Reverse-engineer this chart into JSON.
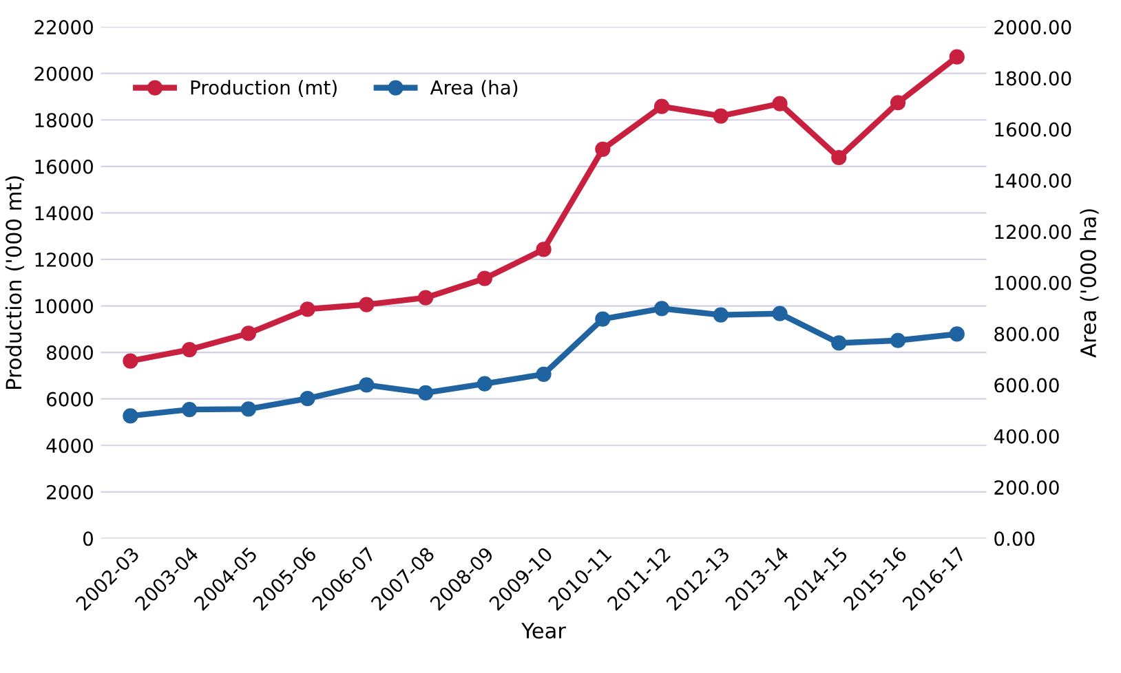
{
  "chart_data": {
    "type": "line",
    "xlabel": "Year",
    "ylabel": "Production ('000 mt)",
    "y2label": "Area ('000 ha)",
    "categories": [
      "2002-03",
      "2003-04",
      "2004-05",
      "2005-06",
      "2006-07",
      "2007-08",
      "2008-09",
      "2009-10",
      "2010-11",
      "2011-12",
      "2012-13",
      "2013-14",
      "2014-15",
      "2015-16",
      "2016-17"
    ],
    "series": [
      {
        "name": "Production (mt)",
        "color": "#c8203f",
        "values": [
          7630,
          8120,
          8820,
          9860,
          10060,
          10350,
          11180,
          12430,
          16740,
          18580,
          18170,
          18700,
          16380,
          18740,
          20710
        ]
      },
      {
        "name": "Area (ha)",
        "color": "#1f64a0",
        "axis": "y2",
        "values": [
          479,
          504,
          506,
          547,
          600,
          569,
          605,
          642,
          858,
          899,
          874,
          879,
          764,
          774,
          799
        ]
      }
    ],
    "ylim": [
      0,
      22000
    ],
    "yticks": [
      0,
      2000,
      4000,
      6000,
      8000,
      10000,
      12000,
      14000,
      16000,
      18000,
      20000,
      22000
    ],
    "y2lim": [
      0,
      2000
    ],
    "y2ticks": [
      {
        "value": 0,
        "label": "0.00"
      },
      {
        "value": 200,
        "label": "200.00"
      },
      {
        "value": 400,
        "label": "400.00"
      },
      {
        "value": 600,
        "label": "600.00"
      },
      {
        "value": 800,
        "label": "800.00"
      },
      {
        "value": 1000,
        "label": "1000.00"
      },
      {
        "value": 1200,
        "label": "1200.00"
      },
      {
        "value": 1400,
        "label": "1400.00"
      },
      {
        "value": 1600,
        "label": "1600.00"
      },
      {
        "value": 1800,
        "label": "1800.00"
      },
      {
        "value": 2000,
        "label": "2000.00"
      }
    ],
    "grid": "y",
    "legend": "top left",
    "marker": "circle",
    "line_style": "solid"
  }
}
